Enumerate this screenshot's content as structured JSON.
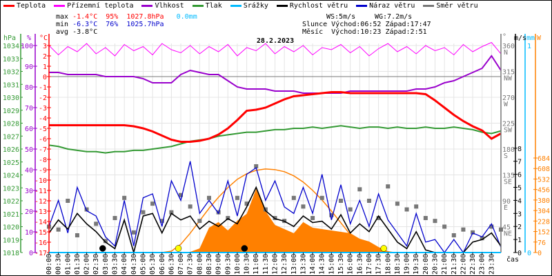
{
  "chart_data": {
    "type": "line",
    "title": "28.2.2023",
    "legend": [
      {
        "name": "Teplota",
        "color": "#ff0000"
      },
      {
        "name": "Přízemní teplota",
        "color": "#ff00ff"
      },
      {
        "name": "Vlhkost",
        "color": "#9900cc"
      },
      {
        "name": "Tlak",
        "color": "#339933"
      },
      {
        "name": "Srážky",
        "color": "#00bbff"
      },
      {
        "name": "Rychlost větru",
        "color": "#000000"
      },
      {
        "name": "Náraz větru",
        "color": "#0000cc"
      },
      {
        "name": "Směr větru",
        "color": "#777777"
      }
    ],
    "stats": {
      "max_label": "max",
      "max_temp": "-1.4°C",
      "max_hum": "95%",
      "max_press": "1027.8hPa",
      "max_rain": "0.0mm",
      "min_label": "min",
      "min_temp": "-6.3°C",
      "min_hum": "76%",
      "min_press": "1025.7hPa",
      "avg_label": "avg",
      "avg_temp": "-3.8°C",
      "ws": "WS:5m/s",
      "wg": "WG:7.2m/s",
      "sun_label": "Slunce",
      "sunrise": "Východ:06:52",
      "sunset": "Západ:17:47",
      "moon_label": "Měsíc",
      "moonrise": "Východ:10:23",
      "moonset": "Západ:2:51"
    },
    "axes": {
      "hpa": {
        "unit": "hPa",
        "min": 1018,
        "max": 1034,
        "ticks": [
          1018,
          1019,
          1020,
          1021,
          1022,
          1023,
          1024,
          1025,
          1026,
          1027,
          1028,
          1029,
          1030,
          1031,
          1032,
          1033,
          1034
        ]
      },
      "pct": {
        "unit": "%",
        "min": 0,
        "max": 100,
        "ticks": [
          0,
          10,
          20,
          30,
          40,
          50,
          60,
          70,
          80,
          90,
          100
        ]
      },
      "temp": {
        "unit": "°C",
        "min": -17,
        "max": 3,
        "ticks": [
          3,
          2,
          1,
          0,
          -1,
          -2,
          -3,
          -4,
          -5,
          -6,
          -7,
          -8,
          -9,
          -10,
          -11,
          -12,
          -13,
          -14,
          -15,
          -16,
          -17
        ]
      },
      "dir": {
        "unit": "°",
        "min": 0,
        "max": 360,
        "ticks": [
          {
            "v": 360,
            "l": "N"
          },
          {
            "v": 315,
            "l": "NW"
          },
          {
            "v": 270,
            "l": "W"
          },
          {
            "v": 225,
            "l": "SW"
          },
          {
            "v": 180,
            "l": "S"
          },
          {
            "v": 135,
            "l": "SE"
          },
          {
            "v": 90,
            "l": "E"
          },
          {
            "v": 45,
            "l": "NE"
          }
        ]
      },
      "ms": {
        "unit": "m/s",
        "min": 0,
        "max": 8,
        "ticks": [
          0,
          1,
          2,
          3,
          4,
          5,
          6,
          7,
          8
        ]
      },
      "mm": {
        "unit": "mm",
        "min": 0,
        "max": 1,
        "ticks": [
          0,
          1
        ]
      },
      "w": {
        "unit": "W",
        "min": 0,
        "max": 684,
        "ticks": [
          0,
          76,
          152,
          228,
          304,
          380,
          456,
          532,
          608,
          684
        ]
      },
      "x": {
        "label": "čas",
        "ticks": [
          "00:00",
          "00:30",
          "01:00",
          "01:30",
          "02:00",
          "02:30",
          "03:00",
          "03:30",
          "04:00",
          "04:30",
          "05:00",
          "05:30",
          "06:00",
          "06:30",
          "07:00",
          "07:30",
          "08:00",
          "08:30",
          "09:00",
          "09:30",
          "10:00",
          "10:30",
          "11:00",
          "11:30",
          "12:00",
          "12:30",
          "13:00",
          "13:30",
          "14:00",
          "14:30",
          "15:00",
          "15:30",
          "16:00",
          "16:30",
          "17:00",
          "17:30",
          "18:00",
          "18:30",
          "19:00",
          "19:30",
          "20:00",
          "20:30",
          "21:00",
          "21:30",
          "22:00",
          "22:30",
          "23:00",
          "23:30"
        ]
      }
    },
    "x_hours_step": 0.5,
    "series": {
      "temp": [
        -4.7,
        -4.7,
        -4.7,
        -4.7,
        -4.7,
        -4.7,
        -4.7,
        -4.7,
        -4.7,
        -4.8,
        -5.0,
        -5.3,
        -5.7,
        -6.1,
        -6.3,
        -6.3,
        -6.2,
        -6.0,
        -5.6,
        -5.0,
        -4.2,
        -3.3,
        -3.2,
        -3.0,
        -2.6,
        -2.2,
        -1.9,
        -1.8,
        -1.7,
        -1.6,
        -1.5,
        -1.5,
        -1.6,
        -1.6,
        -1.6,
        -1.6,
        -1.6,
        -1.6,
        -1.6,
        -1.6,
        -1.7,
        -2.3,
        -3.0,
        -3.7,
        -4.3,
        -4.8,
        -5.2,
        -6.0,
        -5.5
      ],
      "ground_temp": [
        3.0,
        2.1,
        2.9,
        2.4,
        3.2,
        2.2,
        2.8,
        2.0,
        3.1,
        2.5,
        2.9,
        2.1,
        3.2,
        2.6,
        2.3,
        3.0,
        2.2,
        2.9,
        2.4,
        3.1,
        2.0,
        2.8,
        2.5,
        3.2,
        2.2,
        2.9,
        2.4,
        3.0,
        2.1,
        2.8,
        2.6,
        3.1,
        2.3,
        2.9,
        2.0,
        2.7,
        3.2,
        2.4,
        2.9,
        2.2,
        3.0,
        2.5,
        2.8,
        2.1,
        3.1,
        2.4,
        2.9,
        3.3,
        2.2
      ],
      "humidity": [
        87,
        87,
        86,
        86,
        86,
        86,
        85,
        85,
        85,
        85,
        84,
        82,
        82,
        82,
        86,
        88,
        87,
        86,
        86,
        83,
        80,
        79,
        79,
        79,
        78,
        78,
        78,
        77,
        77,
        77,
        77,
        77,
        78,
        78,
        78,
        78,
        78,
        78,
        78,
        79,
        79,
        80,
        82,
        83,
        85,
        87,
        89,
        95,
        88
      ],
      "pressure": [
        1026.3,
        1026.2,
        1026.0,
        1025.9,
        1025.8,
        1025.8,
        1025.7,
        1025.8,
        1025.8,
        1025.9,
        1025.9,
        1026.0,
        1026.1,
        1026.2,
        1026.4,
        1026.6,
        1026.7,
        1026.8,
        1027.0,
        1027.1,
        1027.2,
        1027.3,
        1027.3,
        1027.4,
        1027.5,
        1027.5,
        1027.6,
        1027.6,
        1027.7,
        1027.6,
        1027.7,
        1027.8,
        1027.7,
        1027.6,
        1027.7,
        1027.7,
        1027.6,
        1027.7,
        1027.6,
        1027.6,
        1027.7,
        1027.6,
        1027.6,
        1027.7,
        1027.6,
        1027.5,
        1027.3,
        1027.2,
        1027.4
      ],
      "rain": [
        0,
        0,
        0,
        0,
        0,
        0,
        0,
        0,
        0,
        0,
        0,
        0,
        0,
        0,
        0,
        0,
        0,
        0,
        0,
        0,
        0,
        0,
        0,
        0,
        0,
        0,
        0,
        0,
        0,
        0,
        0,
        0,
        0,
        0,
        0,
        0,
        0,
        0,
        0,
        0,
        0,
        0,
        0,
        0,
        0,
        0,
        0,
        0,
        0
      ],
      "wind_speed": [
        1.5,
        2.5,
        1.8,
        3.0,
        2.2,
        1.6,
        0.8,
        0.3,
        2.5,
        0.0,
        2.8,
        3.0,
        1.5,
        3.0,
        2.5,
        2.8,
        1.8,
        2.4,
        2.0,
        2.6,
        2.2,
        3.5,
        5.0,
        3.2,
        2.6,
        2.4,
        2.0,
        2.8,
        2.3,
        2.4,
        1.8,
        2.9,
        1.5,
        2.2,
        1.6,
        2.8,
        1.8,
        0.8,
        0.3,
        1.6,
        0.2,
        0.0,
        0.0,
        0.0,
        0.0,
        0.8,
        1.0,
        1.5,
        0.5
      ],
      "wind_gust": [
        2.0,
        4.0,
        1.5,
        5.0,
        3.2,
        2.8,
        1.2,
        0.5,
        4.0,
        0.5,
        4.2,
        4.5,
        2.0,
        5.5,
        4.0,
        7.0,
        3.0,
        4.0,
        3.0,
        5.5,
        2.8,
        6.0,
        6.5,
        4.0,
        5.5,
        3.5,
        3.0,
        5.0,
        3.0,
        6.0,
        2.5,
        5.2,
        2.2,
        4.0,
        2.0,
        4.5,
        2.5,
        1.5,
        0.5,
        3.0,
        0.8,
        1.0,
        0.0,
        1.0,
        0.0,
        1.5,
        1.2,
        2.2,
        0.4
      ],
      "wind_dir": [
        45,
        40,
        90,
        30,
        75,
        50,
        20,
        60,
        95,
        35,
        70,
        85,
        55,
        70,
        100,
        80,
        55,
        95,
        70,
        60,
        95,
        85,
        150,
        75,
        60,
        55,
        95,
        80,
        60,
        95,
        65,
        90,
        75,
        110,
        90,
        60,
        115,
        85,
        75,
        80,
        60,
        55,
        45,
        30,
        40,
        35,
        25,
        45,
        40
      ],
      "solar": [
        0,
        0,
        0,
        0,
        0,
        0,
        0,
        0,
        0,
        0,
        0,
        0,
        0,
        0,
        0,
        5,
        30,
        180,
        220,
        160,
        230,
        280,
        460,
        300,
        200,
        170,
        140,
        220,
        180,
        170,
        160,
        150,
        140,
        100,
        80,
        40,
        10,
        0,
        0,
        0,
        0,
        0,
        0,
        0,
        0,
        0,
        0,
        0,
        0
      ],
      "solar_theoretical": [
        0,
        0,
        0,
        0,
        0,
        0,
        0,
        0,
        0,
        0,
        0,
        0,
        0,
        10,
        60,
        140,
        230,
        320,
        400,
        470,
        530,
        570,
        595,
        605,
        600,
        585,
        555,
        510,
        450,
        380,
        300,
        215,
        130,
        55,
        10,
        0,
        0,
        0,
        0,
        0,
        0,
        0,
        0,
        0,
        0,
        0,
        0,
        0,
        0
      ]
    },
    "markers": [
      {
        "type": "moonset",
        "hour": 2.85,
        "color": "#000000"
      },
      {
        "type": "sunrise",
        "hour": 6.87,
        "color": "#ffff00"
      },
      {
        "type": "moonrise",
        "hour": 10.38,
        "color": "#000000"
      },
      {
        "type": "sunset",
        "hour": 17.78,
        "color": "#ffff00"
      }
    ]
  }
}
